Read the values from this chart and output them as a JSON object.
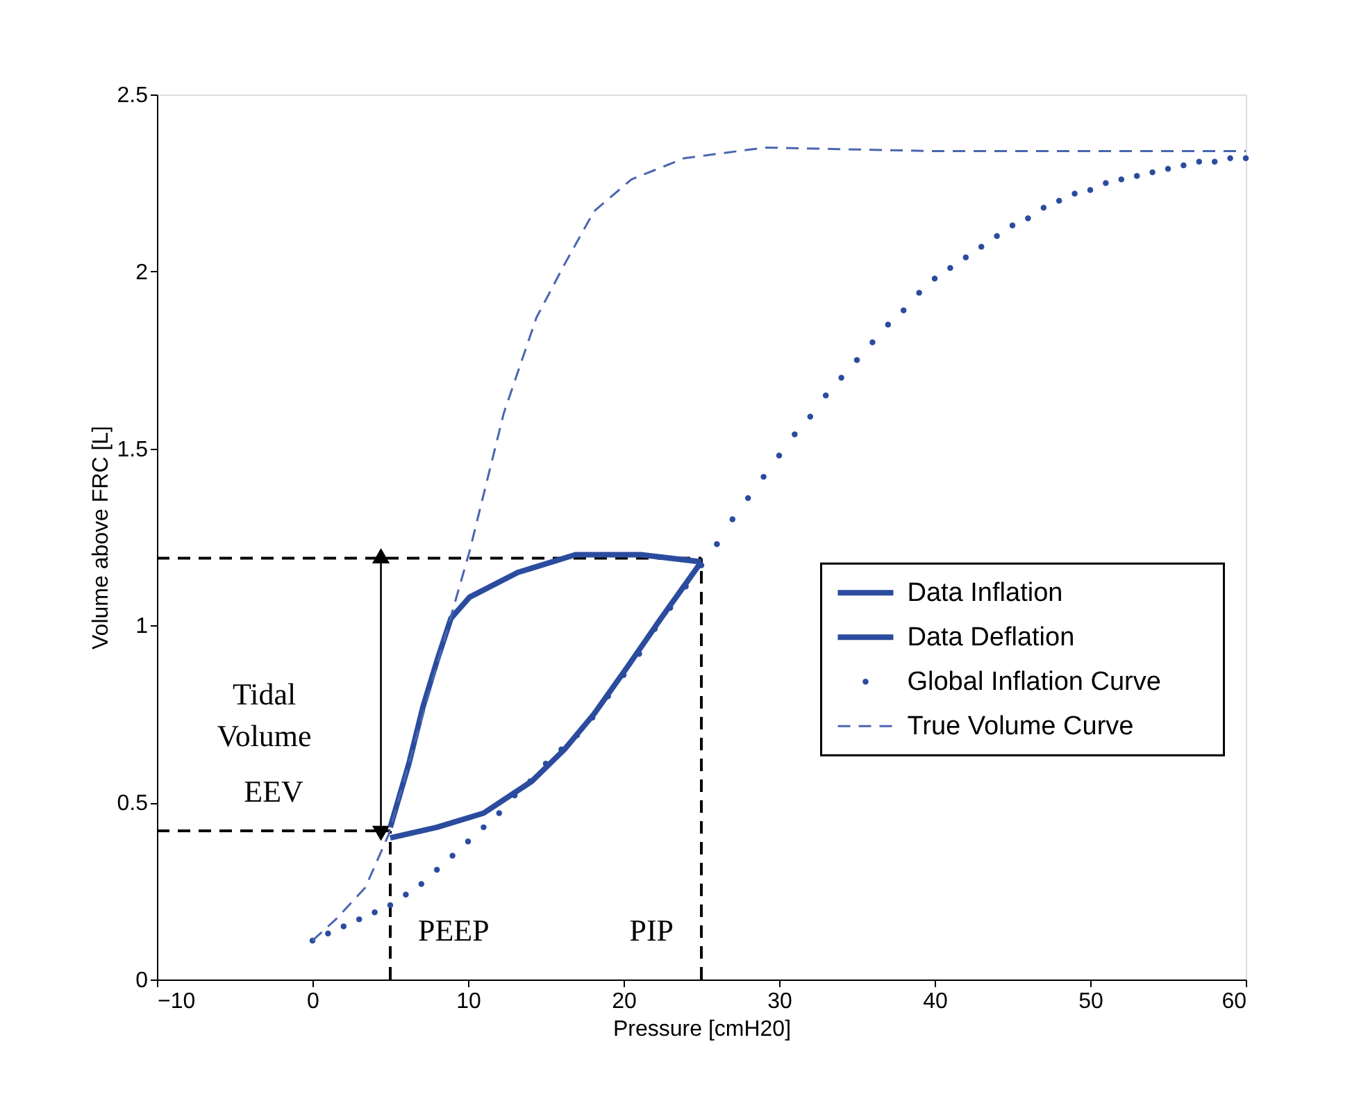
{
  "chart_data": {
    "type": "line",
    "xlabel": "Pressure [cmH20]",
    "ylabel": "Volume above FRC [L]",
    "xlim": [
      -10,
      60
    ],
    "xticks": [
      -10,
      0,
      10,
      20,
      30,
      40,
      50,
      60
    ],
    "ylim": [
      0,
      2.5
    ],
    "yticks": [
      0,
      0.5,
      1,
      1.5,
      2,
      2.5
    ],
    "grid": false,
    "legend": "right",
    "series": [
      {
        "name": "Data Inflation",
        "type": "line",
        "line_style": "solid",
        "color": "#2b4c9e",
        "x": [
          5.0,
          8.0,
          11.0,
          14.1,
          16.2,
          18.1,
          20.2,
          22.4,
          25.0
        ],
        "values": [
          0.4,
          0.43,
          0.47,
          0.56,
          0.65,
          0.75,
          0.88,
          1.02,
          1.18
        ]
      },
      {
        "name": "Data Deflation",
        "type": "line",
        "line_style": "solid",
        "color": "#2b4c9e",
        "x": [
          25.0,
          21.1,
          16.9,
          13.2,
          10.1,
          8.9,
          8.0,
          7.1,
          6.2,
          5.0
        ],
        "values": [
          1.18,
          1.2,
          1.2,
          1.15,
          1.08,
          1.02,
          0.9,
          0.77,
          0.61,
          0.43
        ]
      },
      {
        "name": "Global Inflation Curve",
        "type": "scatter",
        "marker": "circle",
        "color": "#2b4c9e",
        "x": [
          0,
          1,
          2,
          3,
          4,
          5,
          6,
          7,
          8,
          9,
          10,
          11,
          12,
          13,
          14,
          15,
          16,
          17,
          18,
          19,
          20,
          21,
          22,
          23,
          24,
          25,
          26,
          27,
          28,
          29,
          30,
          31,
          32,
          33,
          34,
          35,
          36,
          37,
          38,
          39,
          40,
          41,
          42,
          43,
          44,
          45,
          46,
          47,
          48,
          49,
          50,
          51,
          52,
          53,
          54,
          55,
          56,
          57,
          58,
          59,
          60
        ],
        "values": [
          0.11,
          0.13,
          0.15,
          0.17,
          0.19,
          0.21,
          0.24,
          0.27,
          0.31,
          0.35,
          0.39,
          0.43,
          0.47,
          0.52,
          0.56,
          0.61,
          0.65,
          0.69,
          0.74,
          0.8,
          0.86,
          0.92,
          0.99,
          1.05,
          1.11,
          1.17,
          1.23,
          1.3,
          1.36,
          1.42,
          1.48,
          1.54,
          1.59,
          1.65,
          1.7,
          1.75,
          1.8,
          1.85,
          1.89,
          1.94,
          1.98,
          2.01,
          2.04,
          2.07,
          2.1,
          2.13,
          2.15,
          2.18,
          2.2,
          2.22,
          2.23,
          2.25,
          2.26,
          2.27,
          2.28,
          2.29,
          2.3,
          2.31,
          2.31,
          2.32,
          2.32
        ]
      },
      {
        "name": "True Volume Curve",
        "type": "line",
        "line_style": "dashed",
        "color": "#4a66b0",
        "x": [
          0,
          1.5,
          3.4,
          4.9,
          7.5,
          10.1,
          12.3,
          14.4,
          16.2,
          18.1,
          20.5,
          23.9,
          29.1,
          40,
          50,
          60
        ],
        "values": [
          0.11,
          0.17,
          0.26,
          0.41,
          0.81,
          1.21,
          1.6,
          1.87,
          2.02,
          2.17,
          2.26,
          2.32,
          2.35,
          2.34,
          2.34,
          2.34
        ]
      }
    ],
    "ref_lines": [
      {
        "axis": "y",
        "value": 1.19,
        "color": "#000000",
        "line_style": "dashed"
      },
      {
        "axis": "y",
        "value": 0.42,
        "label": "EEV",
        "color": "#000000",
        "line_style": "dashed"
      },
      {
        "axis": "x",
        "value": 5,
        "label": "PEEP",
        "color": "#000000",
        "line_style": "dashed"
      },
      {
        "axis": "x",
        "value": 25,
        "label": "PIP",
        "color": "#000000",
        "line_style": "dashed"
      }
    ],
    "annotations": [
      "Tidal Volume"
    ]
  }
}
